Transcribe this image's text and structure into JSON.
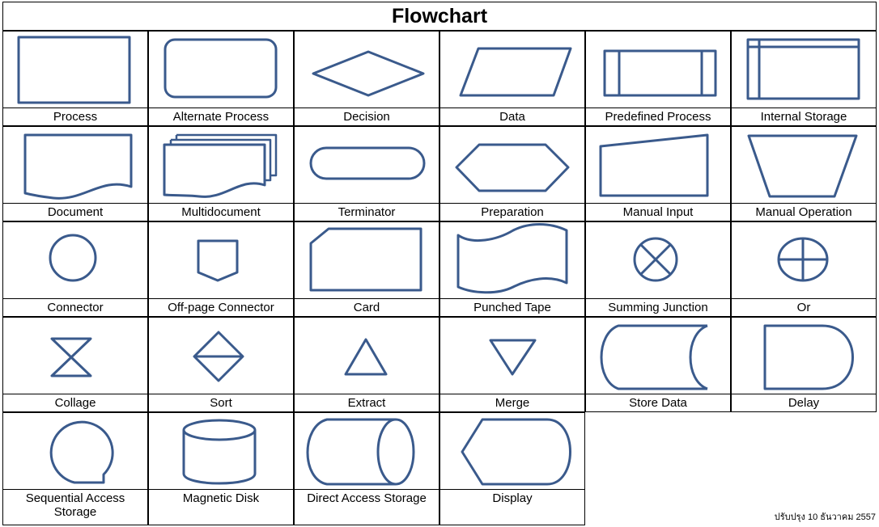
{
  "title": "Flowchart",
  "shapes": [
    "Process",
    "Alternate Process",
    "Decision",
    "Data",
    "Predefined Process",
    "Internal Storage",
    "Document",
    "Multidocument",
    "Terminator",
    "Preparation",
    "Manual Input",
    "Manual Operation",
    "Connector",
    "Off-page Connector",
    "Card",
    "Punched Tape",
    "Summing Junction",
    "Or",
    "Collage",
    "Sort",
    "Extract",
    "Merge",
    "Store Data",
    "Delay",
    "Sequential Access Storage",
    "Magnetic Disk",
    "Direct Access Storage",
    "Display"
  ],
  "footnote": "ปรับปรุง 10 ธันวาคม 2557",
  "colors": {
    "shape_stroke": "#3a5a8c",
    "border": "#000000"
  }
}
